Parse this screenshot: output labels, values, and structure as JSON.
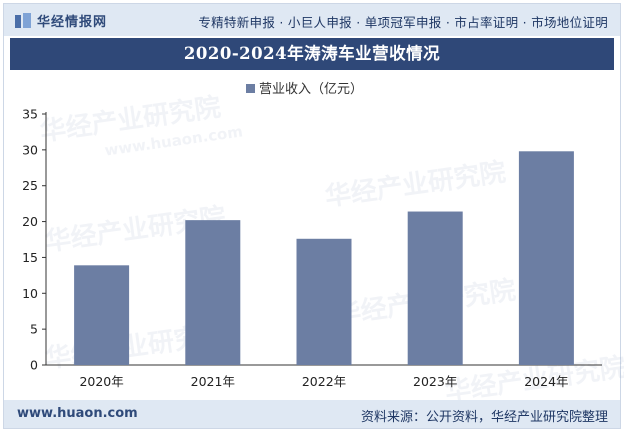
{
  "header": {
    "logo_text": "华经情报网",
    "tags": "专精特新申报 · 小巨人申报 · 单项冠军申报 · 市占率证明 · 市场地位证明"
  },
  "title": "2020-2024年涛涛车业营收情况",
  "footer": {
    "url": "www.huaon.com",
    "source": "资料来源：公开资料，华经产业研究院整理"
  },
  "watermark": {
    "text": "华经产业研究院",
    "url_text": "www.huaon.com"
  },
  "colors": {
    "bar": "#6c7ea3",
    "title_bg": "#2f4878",
    "band_bg": "#dfe8f3"
  },
  "chart_data": {
    "type": "bar",
    "categories": [
      "2020年",
      "2021年",
      "2022年",
      "2023年",
      "2024年"
    ],
    "series": [
      {
        "name": "营业收入（亿元）",
        "values": [
          13.9,
          20.2,
          17.6,
          21.4,
          29.8
        ]
      }
    ],
    "ylim": [
      0,
      35
    ],
    "yticks": [
      0,
      5,
      10,
      15,
      20,
      25,
      30,
      35
    ],
    "legend": "top-center",
    "grid": false
  }
}
